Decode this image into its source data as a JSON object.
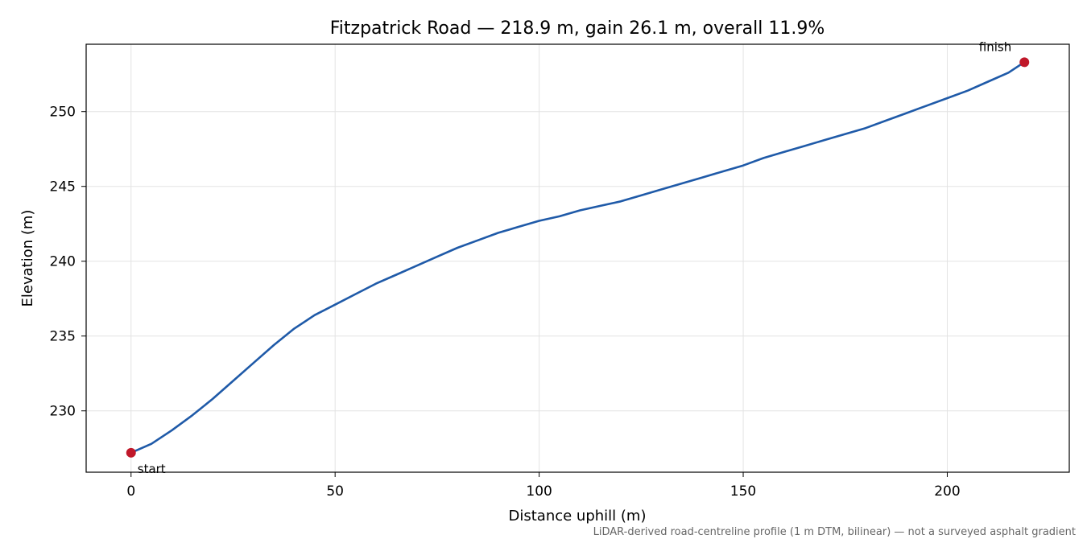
{
  "chart_data": {
    "type": "line",
    "title": "Fitzpatrick Road — 218.9 m, gain 26.1 m, overall 11.9%",
    "xlabel": "Distance uphill (m)",
    "ylabel": "Elevation (m)",
    "footnote": "LiDAR-derived road-centreline profile (1 m DTM, bilinear) — not a surveyed asphalt gradient",
    "xlim": [
      -11,
      229.9
    ],
    "ylim": [
      225.9,
      254.5
    ],
    "x_ticks": [
      0,
      50,
      100,
      150,
      200
    ],
    "x_tick_labels": [
      "0",
      "50",
      "100",
      "150",
      "200"
    ],
    "y_ticks": [
      230,
      235,
      240,
      245,
      250
    ],
    "y_tick_labels": [
      "230",
      "235",
      "240",
      "245",
      "250"
    ],
    "grid": true,
    "line_color": "#1f5aa8",
    "marker_color": "#c0182a",
    "series": [
      {
        "x": [
          0,
          5,
          10,
          15,
          20,
          25,
          30,
          35,
          40,
          45,
          50,
          55,
          60,
          65,
          70,
          75,
          80,
          85,
          90,
          95,
          100,
          105,
          110,
          115,
          120,
          125,
          130,
          135,
          140,
          145,
          150,
          155,
          160,
          165,
          170,
          175,
          180,
          185,
          190,
          195,
          200,
          205,
          210,
          215,
          218.9
        ],
        "y": [
          227.2,
          227.8,
          228.7,
          229.7,
          230.8,
          232.0,
          233.2,
          234.4,
          235.5,
          236.4,
          237.1,
          237.8,
          238.5,
          239.1,
          239.7,
          240.3,
          240.9,
          241.4,
          241.9,
          242.3,
          242.7,
          243.0,
          243.4,
          243.7,
          244.0,
          244.4,
          244.8,
          245.2,
          245.6,
          246.0,
          246.4,
          246.9,
          247.3,
          247.7,
          248.1,
          248.5,
          248.9,
          249.4,
          249.9,
          250.4,
          250.9,
          251.4,
          252.0,
          252.6,
          253.3
        ]
      }
    ],
    "annotations": [
      {
        "label": "start",
        "x": 0,
        "y": 227.2
      },
      {
        "label": "finish",
        "x": 218.9,
        "y": 253.3
      }
    ]
  }
}
